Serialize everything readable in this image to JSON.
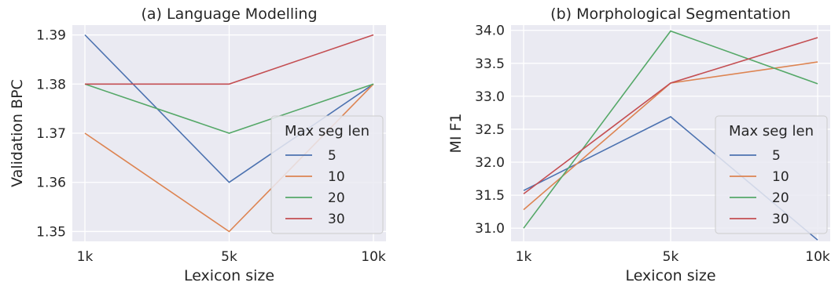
{
  "colors": {
    "5": "#4c72b0",
    "10": "#dd8452",
    "20": "#55a868",
    "30": "#c44e52",
    "background": "#eaeaf2",
    "grid": "#ffffff"
  },
  "chart_data": [
    {
      "type": "line",
      "title": "(a) Language Modelling",
      "xlabel": "Lexicon size",
      "ylabel": "Validation BPC",
      "categories": [
        "1k",
        "5k",
        "10k"
      ],
      "ylim": [
        1.348,
        1.392
      ],
      "yticks": [
        "1.35",
        "1.36",
        "1.37",
        "1.38",
        "1.39"
      ],
      "grid": true,
      "legend": {
        "title": "Max seg len",
        "placement": "center-right"
      },
      "series": [
        {
          "name": "5",
          "values": [
            1.39,
            1.36,
            1.38
          ]
        },
        {
          "name": "10",
          "values": [
            1.37,
            1.35,
            1.38
          ]
        },
        {
          "name": "20",
          "values": [
            1.38,
            1.37,
            1.38
          ]
        },
        {
          "name": "30",
          "values": [
            1.38,
            1.38,
            1.39
          ]
        }
      ]
    },
    {
      "type": "line",
      "title": "(b) Morphological Segmentation",
      "xlabel": "Lexicon size",
      "ylabel": "MI F1",
      "categories": [
        "1k",
        "5k",
        "10k"
      ],
      "ylim": [
        30.8,
        34.08
      ],
      "yticks": [
        "31.0",
        "31.5",
        "32.0",
        "32.5",
        "33.0",
        "33.5",
        "34.0"
      ],
      "grid": true,
      "legend": {
        "title": "Max seg len",
        "placement": "lower-right"
      },
      "series": [
        {
          "name": "5",
          "values": [
            31.57,
            32.69,
            30.82
          ]
        },
        {
          "name": "10",
          "values": [
            31.28,
            33.2,
            33.52
          ]
        },
        {
          "name": "20",
          "values": [
            31.0,
            33.99,
            33.19
          ]
        },
        {
          "name": "30",
          "values": [
            31.52,
            33.2,
            33.89
          ]
        }
      ]
    }
  ]
}
